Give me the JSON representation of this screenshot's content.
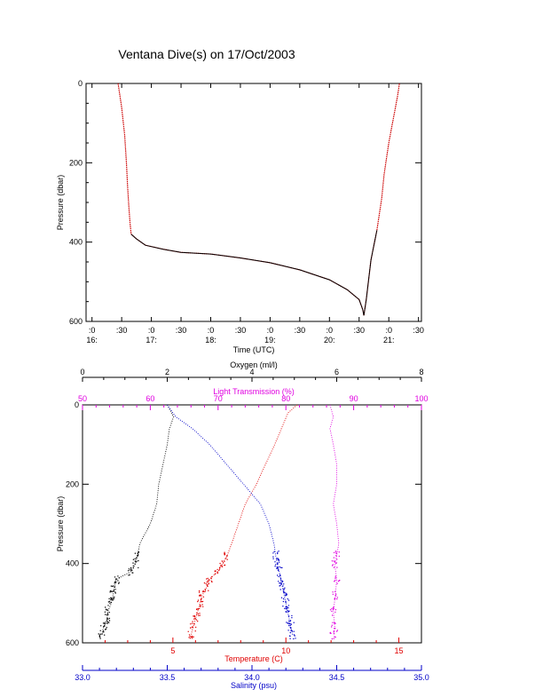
{
  "title": "Ventana Dive(s) on 17/Oct/2003",
  "colors": {
    "axis": "#000000",
    "trace_dark": "#000000",
    "trace_red": "#cc0000",
    "light": "#e000e0",
    "temperature": "#e00000",
    "salinity": "#0000c8",
    "oxygen": "#000000"
  },
  "chart_data": [
    {
      "type": "line",
      "title": "Ventana Dive(s) on 17/Oct/2003",
      "xlabel": "Time (UTC)",
      "ylabel": "Pressure (dbar)",
      "x_unit": "hours UTC",
      "xlim": [
        15.9,
        21.55
      ],
      "ylim": [
        600,
        0
      ],
      "y_inverted": true,
      "grid": false,
      "x_ticks": [
        {
          "v": 16.0,
          "l1": ":0",
          "l2": "16:"
        },
        {
          "v": 16.5,
          "l1": ":30",
          "l2": ""
        },
        {
          "v": 17.0,
          "l1": ":0",
          "l2": "17:"
        },
        {
          "v": 17.5,
          "l1": ":30",
          "l2": ""
        },
        {
          "v": 18.0,
          "l1": ":0",
          "l2": "18:"
        },
        {
          "v": 18.5,
          "l1": ":30",
          "l2": ""
        },
        {
          "v": 19.0,
          "l1": ":0",
          "l2": "19:"
        },
        {
          "v": 19.5,
          "l1": ":30",
          "l2": ""
        },
        {
          "v": 20.0,
          "l1": ":0",
          "l2": "20:"
        },
        {
          "v": 20.5,
          "l1": ":30",
          "l2": ""
        },
        {
          "v": 21.0,
          "l1": ":0",
          "l2": "21:"
        },
        {
          "v": 21.5,
          "l1": ":30",
          "l2": ""
        }
      ],
      "y_ticks": [
        0,
        200,
        400,
        600
      ],
      "series": [
        {
          "x": [
            16.44,
            16.5,
            16.55,
            16.58,
            16.6,
            16.62,
            16.64,
            16.66,
            16.75,
            16.9,
            17.2,
            17.5,
            18.0,
            18.5,
            19.0,
            19.5,
            20.0,
            20.3,
            20.5,
            20.56,
            20.58,
            20.62,
            20.7,
            20.8,
            20.88,
            20.92,
            20.96,
            21.0,
            21.05,
            21.1,
            21.15,
            21.18
          ],
          "y": [
            0,
            60,
            130,
            200,
            260,
            310,
            350,
            380,
            392,
            408,
            418,
            426,
            430,
            440,
            452,
            470,
            495,
            520,
            545,
            570,
            585,
            545,
            445,
            370,
            290,
            230,
            190,
            150,
            110,
            70,
            30,
            0
          ]
        }
      ]
    },
    {
      "type": "scatter",
      "xlabel": "Temperature (C)",
      "ylabel": "Pressure (dbar)",
      "ylim": [
        600,
        0
      ],
      "y_inverted": true,
      "grid": false,
      "axes": {
        "oxygen": {
          "label": "Oxygen (ml/l)",
          "lim": [
            0,
            8
          ],
          "ticks": [
            0,
            2,
            4,
            6,
            8
          ],
          "position": "top-outer"
        },
        "light": {
          "label": "Light Transmission (%)",
          "lim": [
            50,
            100
          ],
          "ticks": [
            50,
            60,
            70,
            80,
            90,
            100
          ],
          "position": "top-inner"
        },
        "temperature": {
          "label": "Temperature (C)",
          "lim": [
            1,
            16
          ],
          "ticks": [
            5,
            10,
            15
          ],
          "position": "bottom-inner"
        },
        "salinity": {
          "label": "Salinity (psu)",
          "lim": [
            33.0,
            35.0
          ],
          "ticks": [
            "33.0",
            "33.5",
            "34.0",
            "34.5",
            "35.0"
          ],
          "position": "bottom-outer"
        }
      },
      "y_ticks": [
        0,
        200,
        400,
        600
      ],
      "series": [
        {
          "name": "Oxygen (ml/l)",
          "color": "black",
          "y": [
            0,
            30,
            60,
            100,
            150,
            200,
            250,
            300,
            350,
            380,
            400,
            420,
            440,
            460,
            480,
            500,
            520,
            540,
            560,
            580
          ],
          "x": [
            2.0,
            2.15,
            2.05,
            2.0,
            1.9,
            1.8,
            1.75,
            1.6,
            1.35,
            1.3,
            1.25,
            1.15,
            0.8,
            0.75,
            0.72,
            0.68,
            0.6,
            0.58,
            0.5,
            0.45
          ]
        },
        {
          "name": "Light Transmission (%)",
          "color": "magenta",
          "y": [
            0,
            30,
            60,
            100,
            150,
            200,
            250,
            300,
            350,
            380,
            400,
            440,
            480,
            520,
            560,
            580
          ],
          "x": [
            86.5,
            87.0,
            86.5,
            87.0,
            87.5,
            87.5,
            87.0,
            87.5,
            87.8,
            87.5,
            87.2,
            87.5,
            87.3,
            87.0,
            87.2,
            87.0
          ]
        },
        {
          "name": "Temperature (C)",
          "color": "red",
          "y": [
            0,
            20,
            60,
            100,
            150,
            200,
            250,
            300,
            350,
            380,
            400,
            420,
            440,
            460,
            480,
            500,
            520,
            540,
            560,
            580
          ],
          "x": [
            10.5,
            10.1,
            9.8,
            9.5,
            9.1,
            8.7,
            8.2,
            7.9,
            7.6,
            7.4,
            7.2,
            7.0,
            6.6,
            6.5,
            6.3,
            6.2,
            6.1,
            6.0,
            5.9,
            5.8
          ]
        },
        {
          "name": "Salinity (psu)",
          "color": "blue",
          "y": [
            0,
            30,
            60,
            100,
            150,
            200,
            250,
            300,
            350,
            380,
            400,
            420,
            440,
            460,
            480,
            500,
            520,
            540,
            560,
            580
          ],
          "x": [
            33.5,
            33.55,
            33.65,
            33.75,
            33.85,
            33.95,
            34.05,
            34.1,
            34.13,
            34.14,
            34.15,
            34.16,
            34.17,
            34.18,
            34.19,
            34.2,
            34.21,
            34.22,
            34.23,
            34.24
          ]
        }
      ]
    }
  ]
}
